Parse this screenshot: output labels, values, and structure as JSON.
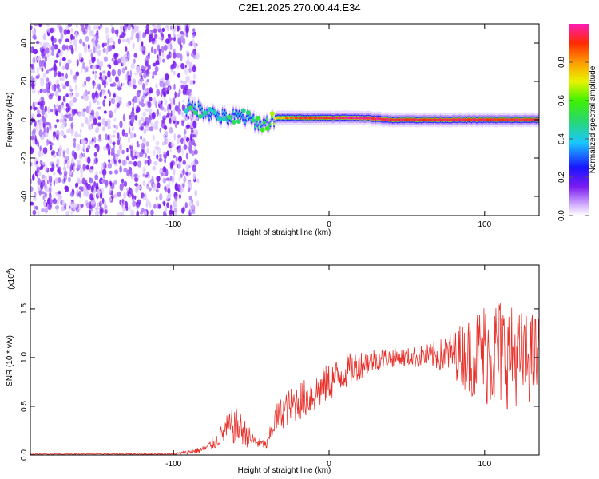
{
  "title": "C2E1.2025.270.00.44.E34",
  "colors": {
    "snr_line": "#e8302a",
    "axis": "#000000",
    "background": "#ffffff"
  },
  "chart_data": [
    {
      "type": "heatmap",
      "title": "C2E1.2025.270.00.44.E34",
      "xlabel": "Height of straight line (km)",
      "ylabel": "Frequency (Hz)",
      "xlim": [
        -192,
        135
      ],
      "ylim": [
        -50,
        50
      ],
      "xticks": [
        -100,
        0,
        100
      ],
      "yticks": [
        -40,
        -20,
        0,
        20,
        40
      ],
      "noise_region_x": [
        -192,
        -92
      ],
      "ridge": {
        "x": [
          -92,
          -85,
          -78,
          -72,
          -66,
          -60,
          -55,
          -50,
          -45,
          -40,
          -35,
          -20,
          0,
          20,
          40,
          60,
          80,
          100,
          120,
          135
        ],
        "freq_hz": [
          6,
          6,
          4,
          2,
          1,
          2,
          1,
          0,
          -2,
          -2,
          1,
          1,
          1,
          1,
          0,
          0,
          0,
          0,
          0,
          0
        ],
        "amplitude": [
          0.4,
          0.45,
          0.4,
          0.4,
          0.42,
          0.45,
          0.4,
          0.45,
          0.5,
          0.55,
          0.7,
          0.85,
          0.9,
          0.95,
          0.9,
          0.9,
          0.92,
          0.9,
          0.88,
          0.9
        ]
      },
      "colorbar": {
        "label": "Normalized spectral amplitude",
        "range": [
          0.0,
          1.0
        ],
        "ticks": [
          0.0,
          0.2,
          0.4,
          0.6,
          0.8
        ]
      }
    },
    {
      "type": "line",
      "xlabel": "Height of straight line (km)",
      "ylabel": "SNR (10 * v/v)",
      "yscale_label": "(x10",
      "yscale_exp": "4",
      "yscale_close": ")",
      "xlim": [
        -192,
        135
      ],
      "ylim": [
        0.0,
        1.95
      ],
      "xticks": [
        -100,
        0,
        100
      ],
      "yticks": [
        0.0,
        0.5,
        1.0,
        1.5
      ],
      "series": [
        {
          "name": "SNR",
          "x": [
            -192,
            -150,
            -100,
            -90,
            -80,
            -72,
            -65,
            -60,
            -55,
            -50,
            -45,
            -40,
            -35,
            -30,
            -20,
            -10,
            0,
            10,
            20,
            30,
            40,
            50,
            60,
            70,
            80,
            90,
            100,
            110,
            120,
            135
          ],
          "mean": [
            0.01,
            0.01,
            0.01,
            0.03,
            0.06,
            0.15,
            0.28,
            0.3,
            0.25,
            0.15,
            0.12,
            0.1,
            0.35,
            0.45,
            0.55,
            0.62,
            0.75,
            0.85,
            0.93,
            0.98,
            1.0,
            1.0,
            1.01,
            1.02,
            1.05,
            1.02,
            1.05,
            1.05,
            1.0,
            1.0
          ],
          "spread": [
            0.005,
            0.005,
            0.01,
            0.02,
            0.04,
            0.08,
            0.15,
            0.2,
            0.15,
            0.1,
            0.05,
            0.05,
            0.15,
            0.18,
            0.2,
            0.2,
            0.2,
            0.18,
            0.15,
            0.12,
            0.1,
            0.1,
            0.12,
            0.15,
            0.25,
            0.4,
            0.55,
            0.6,
            0.5,
            0.45
          ]
        }
      ]
    }
  ]
}
